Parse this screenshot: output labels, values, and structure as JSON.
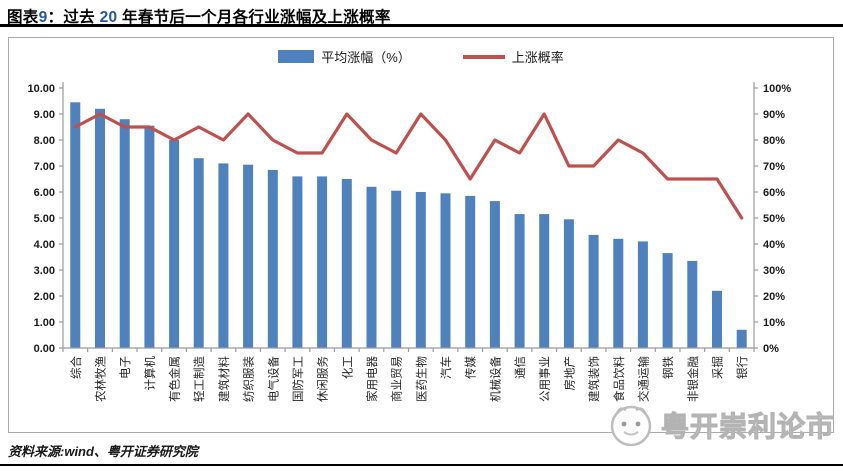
{
  "title": {
    "part1": "图表",
    "num1": "9",
    "colon": "：",
    "part2": "过去 ",
    "num2": "20",
    "part3": " 年春节后一个月各行业涨幅及上涨概率",
    "number_color": "#2455A4"
  },
  "legend": {
    "bar_label": "平均涨幅（%）",
    "line_label": "上涨概率"
  },
  "chart_data": {
    "type": "bar",
    "title": "过去20年春节后一个月各行业涨幅及上涨概率",
    "categories": [
      "综合",
      "农林牧渔",
      "电子",
      "计算机",
      "有色金属",
      "轻工制造",
      "建筑材料",
      "纺织服装",
      "电气设备",
      "国防军工",
      "休闲服务",
      "化工",
      "家用电器",
      "商业贸易",
      "医药生物",
      "汽车",
      "传媒",
      "机械设备",
      "通信",
      "公用事业",
      "房地产",
      "建筑装饰",
      "食品饮料",
      "交通运输",
      "钢铁",
      "非银金融",
      "采掘",
      "银行"
    ],
    "series": [
      {
        "name": "平均涨幅（%）",
        "chart": "bar",
        "axis": "left",
        "color": "#4F81BD",
        "values": [
          9.45,
          9.2,
          8.8,
          8.55,
          8.0,
          7.3,
          7.1,
          7.05,
          6.85,
          6.6,
          6.6,
          6.5,
          6.2,
          6.05,
          6.0,
          5.95,
          5.85,
          5.65,
          5.15,
          5.15,
          4.95,
          4.35,
          4.2,
          4.1,
          3.65,
          3.35,
          2.2,
          0.7
        ]
      },
      {
        "name": "上涨概率",
        "chart": "line",
        "axis": "right",
        "color": "#C0504D",
        "values": [
          85,
          90,
          85,
          85,
          80,
          85,
          80,
          90,
          80,
          75,
          75,
          90,
          80,
          75,
          90,
          80,
          65,
          80,
          75,
          90,
          70,
          70,
          80,
          75,
          65,
          65,
          65,
          50
        ]
      }
    ],
    "left_axis": {
      "min": 0,
      "max": 10,
      "step": 1,
      "decimals": 2
    },
    "right_axis": {
      "min": 0,
      "max": 100,
      "step": 10,
      "suffix": "%"
    },
    "grid": false,
    "legend_position": "top"
  },
  "footer": {
    "source": "资料来源:wind、粤开证券研究院"
  },
  "watermark": {
    "text": "粤开崇利论市"
  },
  "colors": {
    "bar": "#4F81BD",
    "line": "#C0504D",
    "axis": "#9b9b9b",
    "tick_label": "#1a1a1a",
    "category_label": "#262626"
  }
}
